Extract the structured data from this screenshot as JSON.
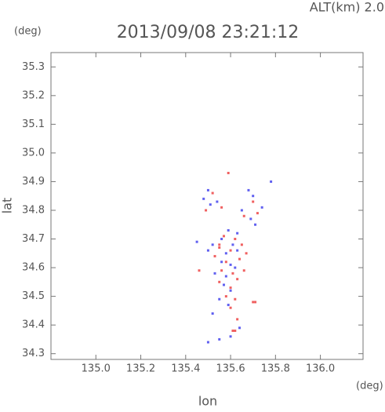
{
  "chart_data": {
    "type": "scatter",
    "title": "2013/09/08 23:21:12",
    "subtitle": "ALT(km)  2.0",
    "x_label": "lon",
    "y_label": "lat",
    "x_unit": "(deg)",
    "y_unit": "(deg)",
    "xlim": [
      134.8,
      136.19
    ],
    "ylim": [
      34.28,
      35.35
    ],
    "xticks": [
      {
        "value": 135.0,
        "label": "135.0"
      },
      135.2,
      135.4,
      135.6,
      135.8,
      {
        "value": 136.0,
        "label": "136.0"
      }
    ],
    "yticks": [
      34.3,
      34.4,
      34.5,
      34.6,
      34.7,
      34.8,
      34.9,
      {
        "value": 35.0,
        "label": "35.0"
      },
      35.1,
      35.2,
      35.3
    ],
    "series": [
      {
        "color": "#f06060",
        "x": [
          135.59,
          135.52,
          135.49,
          135.56,
          135.66,
          135.7,
          135.72,
          135.57,
          135.62,
          135.55,
          135.6,
          135.65,
          135.53,
          135.58,
          135.64,
          135.67,
          135.56,
          135.61,
          135.55,
          135.63,
          135.6,
          135.58,
          135.62,
          135.6,
          135.71,
          135.7,
          135.63,
          135.61,
          135.62,
          135.46,
          135.66,
          135.55
        ],
        "y": [
          34.93,
          34.86,
          34.8,
          34.81,
          34.78,
          34.83,
          34.79,
          34.71,
          34.7,
          34.67,
          34.66,
          34.68,
          34.64,
          34.62,
          34.63,
          34.65,
          34.59,
          34.58,
          34.55,
          34.56,
          34.53,
          34.5,
          34.49,
          34.46,
          34.48,
          34.48,
          34.42,
          34.38,
          34.38,
          34.59,
          34.59,
          34.68
        ]
      },
      {
        "color": "#6060f0",
        "x": [
          135.5,
          135.48,
          135.51,
          135.54,
          135.68,
          135.7,
          135.65,
          135.69,
          135.74,
          135.71,
          135.59,
          135.63,
          135.56,
          135.52,
          135.61,
          135.58,
          135.63,
          135.5,
          135.56,
          135.6,
          135.53,
          135.58,
          135.62,
          135.57,
          135.6,
          135.55,
          135.59,
          135.52,
          135.55,
          135.5,
          135.6,
          135.64,
          135.78,
          135.45
        ],
        "y": [
          34.87,
          34.84,
          34.82,
          34.83,
          34.87,
          34.85,
          34.8,
          34.77,
          34.81,
          34.75,
          34.73,
          34.72,
          34.7,
          34.68,
          34.68,
          34.65,
          34.66,
          34.66,
          34.62,
          34.61,
          34.58,
          34.57,
          34.6,
          34.54,
          34.52,
          34.49,
          34.47,
          34.44,
          34.35,
          34.34,
          34.36,
          34.39,
          34.9,
          34.69
        ]
      }
    ]
  }
}
